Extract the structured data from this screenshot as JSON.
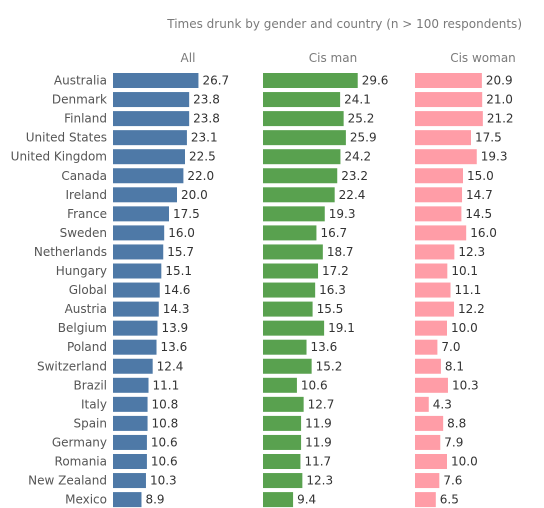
{
  "chart_data": {
    "type": "bar",
    "orientation": "horizontal",
    "title": "Times drunk by gender and country (n > 100 respondents)",
    "categories": [
      "Australia",
      "Denmark",
      "Finland",
      "United States",
      "United Kingdom",
      "Canada",
      "Ireland",
      "France",
      "Sweden",
      "Netherlands",
      "Hungary",
      "Global",
      "Austria",
      "Belgium",
      "Poland",
      "Switzerland",
      "Brazil",
      "Italy",
      "Spain",
      "Germany",
      "Romania",
      "New Zealand",
      "Mexico"
    ],
    "series": [
      {
        "name": "All",
        "color": "#4e79a7",
        "values": [
          26.7,
          23.8,
          23.8,
          23.1,
          22.5,
          22.0,
          20.0,
          17.5,
          16.0,
          15.7,
          15.1,
          14.6,
          14.3,
          13.9,
          13.6,
          12.4,
          11.1,
          10.8,
          10.8,
          10.6,
          10.6,
          10.3,
          8.9
        ],
        "labels": [
          "26.7",
          "23.8",
          "23.8",
          "23.1",
          "22.5",
          "22.0",
          "20.0",
          "17.5",
          "16.0",
          "15.7",
          "15.1",
          "14.6",
          "14.3",
          "13.9",
          "13.6",
          "12.4",
          "11.1",
          "10.8",
          "10.8",
          "10.6",
          "10.6",
          "10.3",
          "8.9"
        ]
      },
      {
        "name": "Cis man",
        "color": "#59a14f",
        "values": [
          29.6,
          24.1,
          25.2,
          25.9,
          24.2,
          23.2,
          22.4,
          19.3,
          16.7,
          18.7,
          17.2,
          16.3,
          15.5,
          19.1,
          13.6,
          15.2,
          10.6,
          12.7,
          11.9,
          11.9,
          11.7,
          12.3,
          9.4
        ],
        "labels": [
          "29.6",
          "24.1",
          "25.2",
          "25.9",
          "24.2",
          "23.2",
          "22.4",
          "19.3",
          "16.7",
          "18.7",
          "17.2",
          "16.3",
          "15.5",
          "19.1",
          "13.6",
          "15.2",
          "10.6",
          "12.7",
          "11.9",
          "11.9",
          "11.7",
          "12.3",
          "9.4"
        ]
      },
      {
        "name": "Cis woman",
        "color": "#ff9da7",
        "values": [
          20.9,
          21.0,
          21.2,
          17.5,
          19.3,
          15.0,
          14.7,
          14.5,
          16.0,
          12.3,
          10.1,
          11.1,
          12.2,
          10.0,
          7.0,
          8.1,
          10.3,
          4.3,
          8.8,
          7.9,
          10.0,
          7.6,
          6.5
        ],
        "labels": [
          "20.9",
          "21.0",
          "21.2",
          "17.5",
          "19.3",
          "15.0",
          "14.7",
          "14.5",
          "16.0",
          "12.3",
          "10.1",
          "11.1",
          "12.2",
          "10.0",
          "7.0",
          "8.1",
          "10.3",
          "4.3",
          "8.8",
          "7.9",
          "10.0",
          "7.6",
          "6.5"
        ]
      }
    ],
    "grid": false,
    "legend": "none"
  }
}
